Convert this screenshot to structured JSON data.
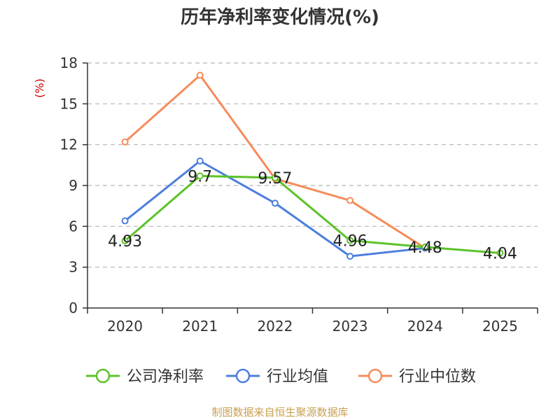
{
  "chart_data": {
    "type": "line",
    "title": "历年净利率变化情况(%)",
    "ylabel": "(%)",
    "xlabel": "",
    "categories": [
      "2020",
      "2021",
      "2022",
      "2023",
      "2024",
      "2025"
    ],
    "yticks": [
      0,
      3,
      6,
      9,
      12,
      15,
      18
    ],
    "ylim": [
      0,
      18
    ],
    "grid": "horizontal dashed",
    "series": [
      {
        "name": "公司净利率",
        "color": "#5cc32a",
        "values": [
          4.93,
          9.7,
          9.57,
          4.96,
          4.48,
          4.04
        ],
        "labels": [
          "4.93",
          "9.7",
          "9.57",
          "4.96",
          "4.48",
          "4.04"
        ]
      },
      {
        "name": "行业均值",
        "color": "#4c7fdd",
        "values": [
          6.4,
          10.8,
          7.7,
          3.8,
          4.4,
          null
        ]
      },
      {
        "name": "行业中位数",
        "color": "#f68c5a",
        "values": [
          12.2,
          17.1,
          9.5,
          7.9,
          4.4,
          null
        ]
      }
    ],
    "source": "制图数据来自恒生聚源数据库",
    "colors": {
      "axis": "#333333",
      "grid": "#b5b5b5",
      "ylabel": "#cc0000",
      "source": "#c8a050"
    }
  }
}
